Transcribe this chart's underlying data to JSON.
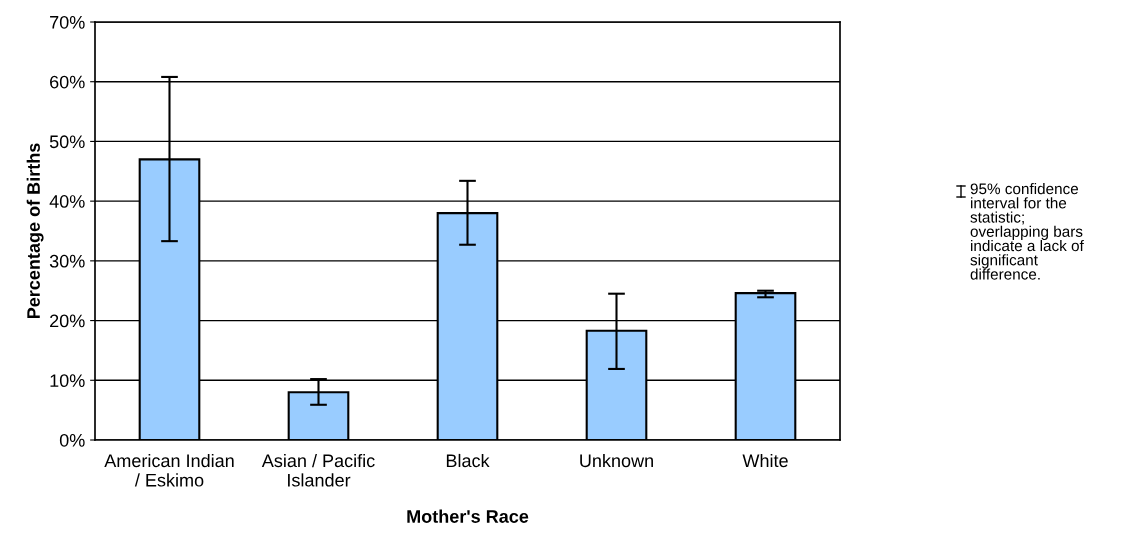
{
  "chart_data": {
    "type": "bar",
    "xlabel": "Mother's Race",
    "ylabel": "Percentage of Births",
    "categories": [
      "American Indian\n/ Eskimo",
      "Asian / Pacific\nIslander",
      "Black",
      "Unknown",
      "White"
    ],
    "values": [
      47.0,
      8.0,
      38.0,
      18.3,
      24.6
    ],
    "errors": [
      [
        33.3,
        60.8
      ],
      [
        5.9,
        10.2
      ],
      [
        32.7,
        43.4
      ],
      [
        11.9,
        24.5
      ],
      [
        23.9,
        25.0
      ]
    ],
    "color": "#99ccff",
    "ylim": [
      0,
      70
    ],
    "yticks": [
      {
        "value": 0,
        "label": "0%"
      },
      {
        "value": 10,
        "label": "10%"
      },
      {
        "value": 20,
        "label": "20%"
      },
      {
        "value": 30,
        "label": "30%"
      },
      {
        "value": 40,
        "label": "40%"
      },
      {
        "value": 50,
        "label": "50%"
      },
      {
        "value": 60,
        "label": "60%"
      },
      {
        "value": 70,
        "label": "70%"
      }
    ],
    "grid": "y",
    "annotations": [
      "95% confidence\ninterval for the\nstatistic;\noverlapping bars\nindicate a lack of\nsignificant\ndifference."
    ]
  }
}
